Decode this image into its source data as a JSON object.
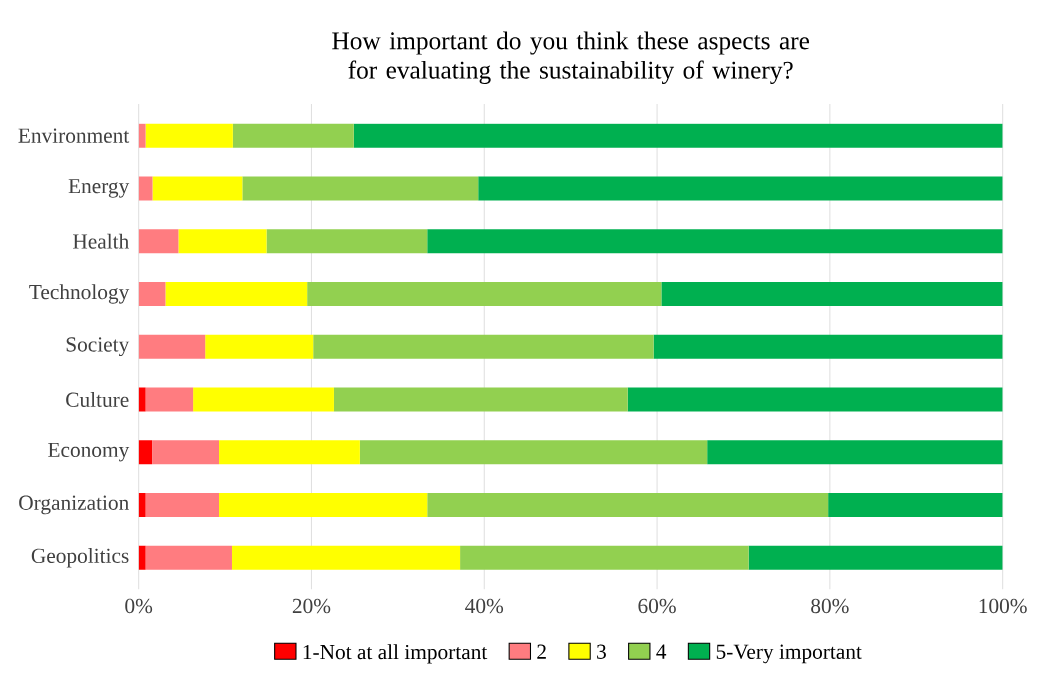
{
  "chart_data": {
    "type": "bar",
    "orientation": "horizontal",
    "stacked": true,
    "title": "How important do you think these aspects are for evaluating the sustainability of winery?",
    "categories": [
      "Environment",
      "Energy",
      "Health",
      "Technology",
      "Society",
      "Culture",
      "Economy",
      "Organization",
      "Geopolitics"
    ],
    "series": [
      {
        "name": "1-Not at all important",
        "color": "#ff0000",
        "values": [
          0,
          0,
          0,
          0,
          0,
          0.8,
          1.6,
          0.8,
          0.8
        ]
      },
      {
        "name": "2",
        "color": "#ff7c80",
        "values": [
          0.8,
          1.6,
          4.6,
          3.1,
          7.7,
          5.5,
          7.7,
          8.5,
          10.0
        ]
      },
      {
        "name": "3",
        "color": "#ffff00",
        "values": [
          10.1,
          10.4,
          10.2,
          16.4,
          12.5,
          16.3,
          16.3,
          24.1,
          26.4
        ]
      },
      {
        "name": "4",
        "color": "#92d050",
        "values": [
          14.0,
          27.3,
          18.6,
          41.0,
          39.4,
          34.0,
          40.2,
          46.4,
          33.4
        ]
      },
      {
        "name": "5-Very important",
        "color": "#00b050",
        "values": [
          75.1,
          60.7,
          66.6,
          39.5,
          40.4,
          43.4,
          34.2,
          20.2,
          29.4
        ]
      }
    ],
    "xlim": [
      0,
      100
    ],
    "xticks": [
      {
        "value": 0,
        "label": "0%"
      },
      {
        "value": 20,
        "label": "20%"
      },
      {
        "value": 40,
        "label": "40%"
      },
      {
        "value": 60,
        "label": "60%"
      },
      {
        "value": 80,
        "label": "80%"
      },
      {
        "value": 100,
        "label": "100%"
      }
    ],
    "grid": "x",
    "legend": "bottom"
  }
}
